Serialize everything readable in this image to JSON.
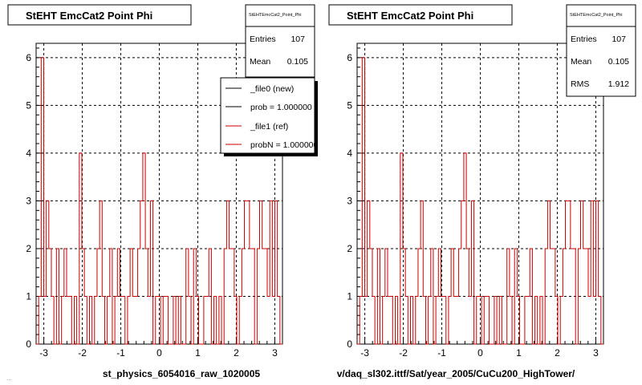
{
  "left_panel": {
    "title": "StEHT EmcCat2 Point Phi",
    "stats": {
      "name": "StEHTEmcCat2_Point_Phi",
      "rows": [
        {
          "label": "Entries",
          "value": "107"
        },
        {
          "label": "Mean",
          "value": "0.105"
        }
      ]
    },
    "legend": [
      {
        "label": "_file0 (new)",
        "color": "#000000"
      },
      {
        "label": "prob = 1.000000",
        "color": "#000000"
      },
      {
        "label": "_file1 (ref)",
        "color": "#cc0000"
      },
      {
        "label": "probN = 1.000000",
        "color": "#cc0000"
      }
    ],
    "xlabel": "st_physics_6054016_raw_1020005"
  },
  "right_panel": {
    "title": "StEHT EmcCat2 Point Phi",
    "stats": {
      "name": "StEHTEmcCat2_Point_Phi",
      "rows": [
        {
          "label": "Entries",
          "value": "107"
        },
        {
          "label": "Mean",
          "value": "0.105"
        },
        {
          "label": "RMS",
          "value": "1.912"
        }
      ]
    },
    "xlabel": "v/daq_sl302.ittf/Sat/year_2005/CuCu200_HighTower/"
  },
  "footer_text": "...",
  "colors": {
    "histogram": "#cc0000",
    "grid": "#000000",
    "frame": "#000000",
    "background": "#ffffff"
  },
  "chart_data": [
    {
      "type": "bar",
      "title": "StEHT EmcCat2 Point Phi",
      "xlabel": "st_physics_6054016_raw_1020005",
      "ylabel": "",
      "xlim": [
        -3.2,
        3.2
      ],
      "ylim": [
        0,
        6.3
      ],
      "x_ticks": [
        -3,
        -2,
        -1,
        0,
        1,
        2,
        3
      ],
      "y_ticks": [
        0,
        1,
        2,
        3,
        4,
        5,
        6
      ],
      "grid": true,
      "legend_position": "top-right",
      "series": [
        {
          "name": "_file1 (ref)",
          "values": [
            0,
            1,
            6,
            1,
            3,
            2,
            1,
            0,
            2,
            0,
            1,
            2,
            1,
            1,
            0,
            1,
            0,
            4,
            2,
            1,
            0,
            1,
            0,
            1,
            2,
            3,
            1,
            0,
            1,
            2,
            0,
            1,
            2,
            1,
            1,
            0,
            1,
            2,
            1,
            1,
            2,
            3,
            4,
            2,
            1,
            3,
            0,
            1,
            1,
            0,
            1,
            1,
            0,
            0,
            1,
            0,
            1,
            0,
            0,
            2,
            1,
            0,
            2,
            1,
            0,
            0,
            1,
            1,
            2,
            0,
            1,
            0,
            1,
            0,
            2,
            3,
            2,
            2,
            1,
            0,
            1,
            2,
            3,
            3,
            2,
            2,
            0,
            2,
            3,
            2,
            2,
            1,
            3,
            1,
            3,
            1,
            0
          ]
        }
      ]
    },
    {
      "type": "bar",
      "title": "StEHT EmcCat2 Point Phi",
      "xlabel": "v/daq_sl302.ittf/Sat/year_2005/CuCu200_HighTower/",
      "ylabel": "",
      "xlim": [
        -3.2,
        3.2
      ],
      "ylim": [
        0,
        6.3
      ],
      "x_ticks": [
        -3,
        -2,
        -1,
        0,
        1,
        2,
        3
      ],
      "y_ticks": [
        0,
        1,
        2,
        3,
        4,
        5,
        6
      ],
      "grid": true,
      "series": [
        {
          "name": "",
          "values": [
            0,
            1,
            6,
            1,
            3,
            2,
            1,
            0,
            2,
            0,
            1,
            2,
            1,
            1,
            0,
            1,
            0,
            4,
            2,
            1,
            0,
            1,
            0,
            1,
            2,
            3,
            1,
            0,
            1,
            2,
            0,
            1,
            2,
            1,
            1,
            0,
            1,
            2,
            1,
            1,
            2,
            3,
            4,
            2,
            1,
            3,
            0,
            1,
            1,
            0,
            1,
            1,
            0,
            0,
            1,
            0,
            1,
            0,
            0,
            2,
            1,
            0,
            2,
            1,
            0,
            0,
            1,
            1,
            2,
            0,
            1,
            0,
            1,
            0,
            2,
            3,
            2,
            2,
            1,
            0,
            1,
            2,
            3,
            3,
            2,
            2,
            0,
            2,
            3,
            2,
            2,
            1,
            3,
            1,
            3,
            1,
            0
          ]
        }
      ]
    }
  ]
}
